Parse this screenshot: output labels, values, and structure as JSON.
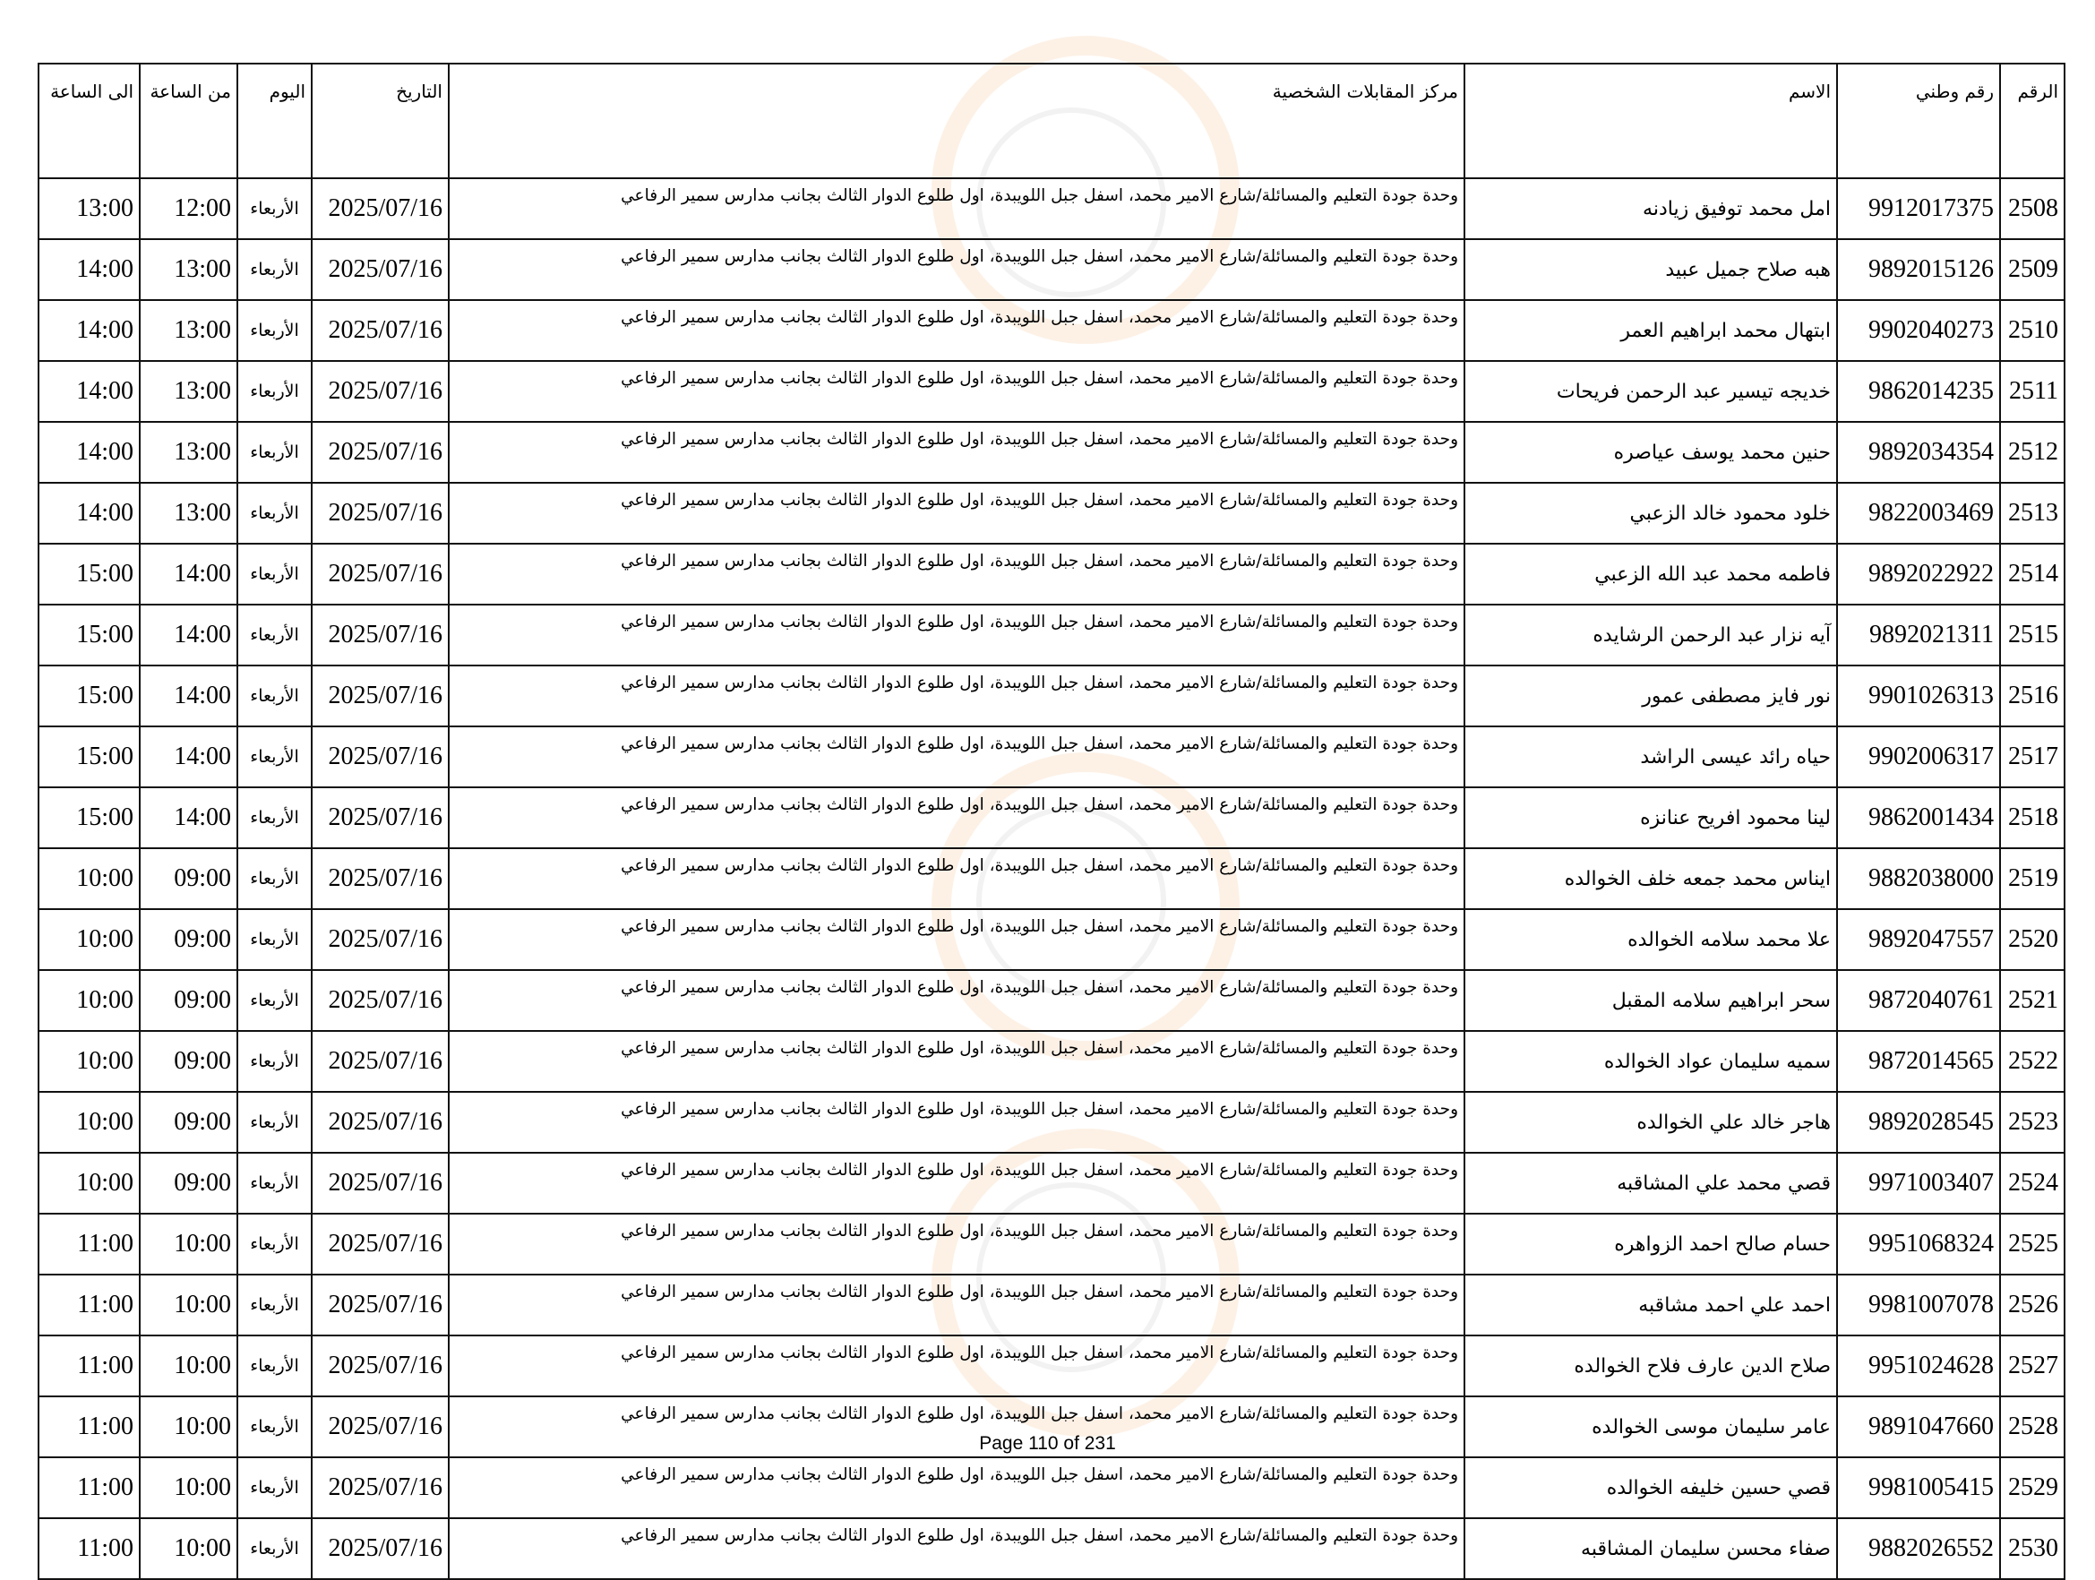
{
  "table": {
    "headers": {
      "index": "الرقم",
      "national_id": "رقم وطني",
      "name": "الاسم",
      "center": "مركز المقابلات الشخصية",
      "date": "التاريخ",
      "day": "اليوم",
      "from": "من الساعة",
      "to": "الى الساعة"
    },
    "rows": [
      {
        "index": "2508",
        "national_id": "9912017375",
        "name": "امل محمد توفيق زيادنه",
        "center": "وحدة جودة التعليم والمسائلة/شارع الامير محمد، اسفل جبل اللويبدة، اول طلوع الدوار الثالث بجانب مدارس سمير الرفاعي",
        "date": "2025/07/16",
        "day": "الأربعاء",
        "from": "12:00",
        "to": "13:00"
      },
      {
        "index": "2509",
        "national_id": "9892015126",
        "name": "هبه صلاح جميل عبيد",
        "center": "وحدة جودة التعليم والمسائلة/شارع الامير محمد، اسفل جبل اللويبدة، اول طلوع الدوار الثالث بجانب مدارس سمير الرفاعي",
        "date": "2025/07/16",
        "day": "الأربعاء",
        "from": "13:00",
        "to": "14:00"
      },
      {
        "index": "2510",
        "national_id": "9902040273",
        "name": "ابتهال محمد ابراهيم العمر",
        "center": "وحدة جودة التعليم والمسائلة/شارع الامير محمد، اسفل جبل اللويبدة، اول طلوع الدوار الثالث بجانب مدارس سمير الرفاعي",
        "date": "2025/07/16",
        "day": "الأربعاء",
        "from": "13:00",
        "to": "14:00"
      },
      {
        "index": "2511",
        "national_id": "9862014235",
        "name": "خديجه تيسير عبد الرحمن فريحات",
        "center": "وحدة جودة التعليم والمسائلة/شارع الامير محمد، اسفل جبل اللويبدة، اول طلوع الدوار الثالث بجانب مدارس سمير الرفاعي",
        "date": "2025/07/16",
        "day": "الأربعاء",
        "from": "13:00",
        "to": "14:00"
      },
      {
        "index": "2512",
        "national_id": "9892034354",
        "name": "حنين محمد يوسف عياصره",
        "center": "وحدة جودة التعليم والمسائلة/شارع الامير محمد، اسفل جبل اللويبدة، اول طلوع الدوار الثالث بجانب مدارس سمير الرفاعي",
        "date": "2025/07/16",
        "day": "الأربعاء",
        "from": "13:00",
        "to": "14:00"
      },
      {
        "index": "2513",
        "national_id": "9822003469",
        "name": "خلود محمود خالد الزعبي",
        "center": "وحدة جودة التعليم والمسائلة/شارع الامير محمد، اسفل جبل اللويبدة، اول طلوع الدوار الثالث بجانب مدارس سمير الرفاعي",
        "date": "2025/07/16",
        "day": "الأربعاء",
        "from": "13:00",
        "to": "14:00"
      },
      {
        "index": "2514",
        "national_id": "9892022922",
        "name": "فاطمه محمد عبد الله الزعبي",
        "center": "وحدة جودة التعليم والمسائلة/شارع الامير محمد، اسفل جبل اللويبدة، اول طلوع الدوار الثالث بجانب مدارس سمير الرفاعي",
        "date": "2025/07/16",
        "day": "الأربعاء",
        "from": "14:00",
        "to": "15:00"
      },
      {
        "index": "2515",
        "national_id": "9892021311",
        "name": "آيه نزار عبد الرحمن الرشايده",
        "center": "وحدة جودة التعليم والمسائلة/شارع الامير محمد، اسفل جبل اللويبدة، اول طلوع الدوار الثالث بجانب مدارس سمير الرفاعي",
        "date": "2025/07/16",
        "day": "الأربعاء",
        "from": "14:00",
        "to": "15:00"
      },
      {
        "index": "2516",
        "national_id": "9901026313",
        "name": "نور فايز مصطفى عمور",
        "center": "وحدة جودة التعليم والمسائلة/شارع الامير محمد، اسفل جبل اللويبدة، اول طلوع الدوار الثالث بجانب مدارس سمير الرفاعي",
        "date": "2025/07/16",
        "day": "الأربعاء",
        "from": "14:00",
        "to": "15:00"
      },
      {
        "index": "2517",
        "national_id": "9902006317",
        "name": "حياه رائد عيسى الراشد",
        "center": "وحدة جودة التعليم والمسائلة/شارع الامير محمد، اسفل جبل اللويبدة، اول طلوع الدوار الثالث بجانب مدارس سمير الرفاعي",
        "date": "2025/07/16",
        "day": "الأربعاء",
        "from": "14:00",
        "to": "15:00"
      },
      {
        "index": "2518",
        "national_id": "9862001434",
        "name": "لينا محمود افريح عنانزه",
        "center": "وحدة جودة التعليم والمسائلة/شارع الامير محمد، اسفل جبل اللويبدة، اول طلوع الدوار الثالث بجانب مدارس سمير الرفاعي",
        "date": "2025/07/16",
        "day": "الأربعاء",
        "from": "14:00",
        "to": "15:00"
      },
      {
        "index": "2519",
        "national_id": "9882038000",
        "name": "ايناس محمد جمعه خلف الخوالده",
        "center": "وحدة جودة التعليم والمسائلة/شارع الامير محمد، اسفل جبل اللويبدة، اول طلوع الدوار الثالث بجانب مدارس سمير الرفاعي",
        "date": "2025/07/16",
        "day": "الأربعاء",
        "from": "09:00",
        "to": "10:00"
      },
      {
        "index": "2520",
        "national_id": "9892047557",
        "name": "علا محمد سلامه الخوالده",
        "center": "وحدة جودة التعليم والمسائلة/شارع الامير محمد، اسفل جبل اللويبدة، اول طلوع الدوار الثالث بجانب مدارس سمير الرفاعي",
        "date": "2025/07/16",
        "day": "الأربعاء",
        "from": "09:00",
        "to": "10:00"
      },
      {
        "index": "2521",
        "national_id": "9872040761",
        "name": "سحر ابراهيم سلامه المقبل",
        "center": "وحدة جودة التعليم والمسائلة/شارع الامير محمد، اسفل جبل اللويبدة، اول طلوع الدوار الثالث بجانب مدارس سمير الرفاعي",
        "date": "2025/07/16",
        "day": "الأربعاء",
        "from": "09:00",
        "to": "10:00"
      },
      {
        "index": "2522",
        "national_id": "9872014565",
        "name": "سميه سليمان عواد الخوالده",
        "center": "وحدة جودة التعليم والمسائلة/شارع الامير محمد، اسفل جبل اللويبدة، اول طلوع الدوار الثالث بجانب مدارس سمير الرفاعي",
        "date": "2025/07/16",
        "day": "الأربعاء",
        "from": "09:00",
        "to": "10:00"
      },
      {
        "index": "2523",
        "national_id": "9892028545",
        "name": "هاجر خالد علي الخوالده",
        "center": "وحدة جودة التعليم والمسائلة/شارع الامير محمد، اسفل جبل اللويبدة، اول طلوع الدوار الثالث بجانب مدارس سمير الرفاعي",
        "date": "2025/07/16",
        "day": "الأربعاء",
        "from": "09:00",
        "to": "10:00"
      },
      {
        "index": "2524",
        "national_id": "9971003407",
        "name": "قصي محمد علي المشاقبه",
        "center": "وحدة جودة التعليم والمسائلة/شارع الامير محمد، اسفل جبل اللويبدة، اول طلوع الدوار الثالث بجانب مدارس سمير الرفاعي",
        "date": "2025/07/16",
        "day": "الأربعاء",
        "from": "09:00",
        "to": "10:00"
      },
      {
        "index": "2525",
        "national_id": "9951068324",
        "name": "حسام صالح احمد الزواهره",
        "center": "وحدة جودة التعليم والمسائلة/شارع الامير محمد، اسفل جبل اللويبدة، اول طلوع الدوار الثالث بجانب مدارس سمير الرفاعي",
        "date": "2025/07/16",
        "day": "الأربعاء",
        "from": "10:00",
        "to": "11:00"
      },
      {
        "index": "2526",
        "national_id": "9981007078",
        "name": "احمد علي احمد مشاقبه",
        "center": "وحدة جودة التعليم والمسائلة/شارع الامير محمد، اسفل جبل اللويبدة، اول طلوع الدوار الثالث بجانب مدارس سمير الرفاعي",
        "date": "2025/07/16",
        "day": "الأربعاء",
        "from": "10:00",
        "to": "11:00"
      },
      {
        "index": "2527",
        "national_id": "9951024628",
        "name": "صلاح الدين عارف فلاح الخوالده",
        "center": "وحدة جودة التعليم والمسائلة/شارع الامير محمد، اسفل جبل اللويبدة، اول طلوع الدوار الثالث بجانب مدارس سمير الرفاعي",
        "date": "2025/07/16",
        "day": "الأربعاء",
        "from": "10:00",
        "to": "11:00"
      },
      {
        "index": "2528",
        "national_id": "9891047660",
        "name": "عامر سليمان موسى الخوالده",
        "center": "وحدة جودة التعليم والمسائلة/شارع الامير محمد، اسفل جبل اللويبدة، اول طلوع الدوار الثالث بجانب مدارس سمير الرفاعي",
        "date": "2025/07/16",
        "day": "الأربعاء",
        "from": "10:00",
        "to": "11:00"
      },
      {
        "index": "2529",
        "national_id": "9981005415",
        "name": "قصي حسين خليفه الخوالده",
        "center": "وحدة جودة التعليم والمسائلة/شارع الامير محمد، اسفل جبل اللويبدة، اول طلوع الدوار الثالث بجانب مدارس سمير الرفاعي",
        "date": "2025/07/16",
        "day": "الأربعاء",
        "from": "10:00",
        "to": "11:00"
      },
      {
        "index": "2530",
        "national_id": "9882026552",
        "name": "صفاء محسن سليمان المشاقبه",
        "center": "وحدة جودة التعليم والمسائلة/شارع الامير محمد، اسفل جبل اللويبدة، اول طلوع الدوار الثالث بجانب مدارس سمير الرفاعي",
        "date": "2025/07/16",
        "day": "الأربعاء",
        "from": "10:00",
        "to": "11:00"
      }
    ]
  },
  "footer": {
    "page_label": "Page 110 of 231"
  },
  "watermark": {
    "color": "#f0963c"
  }
}
